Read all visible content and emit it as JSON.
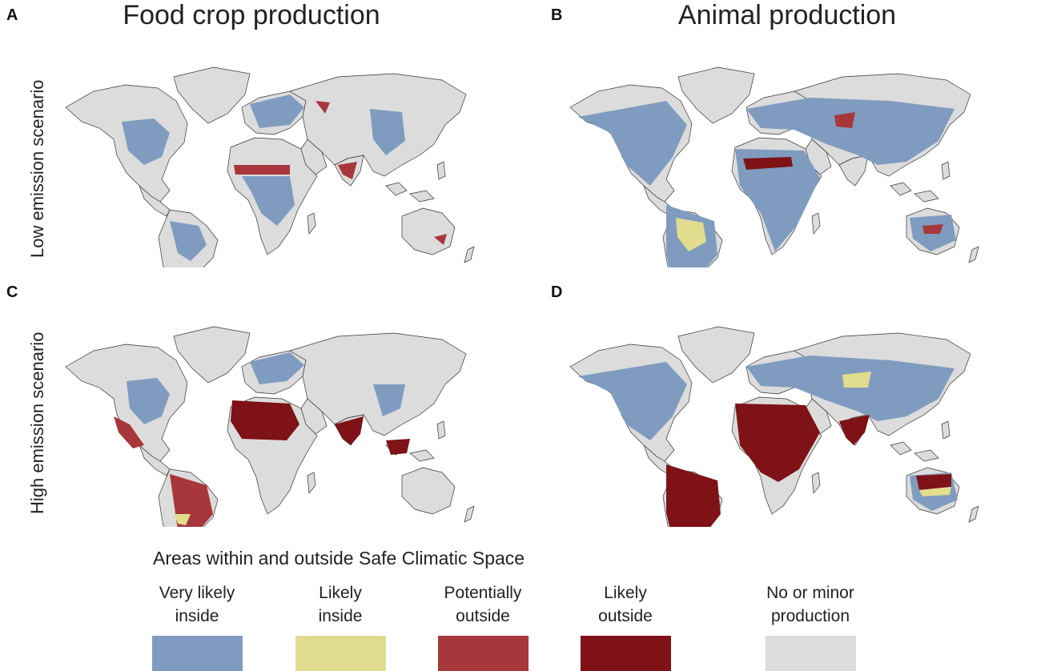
{
  "panels": {
    "a": {
      "letter": "A"
    },
    "b": {
      "letter": "B"
    },
    "c": {
      "letter": "C"
    },
    "d": {
      "letter": "D"
    }
  },
  "columns": {
    "left": "Food crop production",
    "right": "Animal production"
  },
  "rows": {
    "top": "Low emission scenario",
    "bottom": "High emission scenario"
  },
  "legend": {
    "title": "Areas within and outside Safe Climatic Space",
    "items": [
      {
        "line1": "Very likely",
        "line2": "inside",
        "color": "#7f9cc0"
      },
      {
        "line1": "Likely",
        "line2": "inside",
        "color": "#e2dc8e"
      },
      {
        "line1": "Potentially",
        "line2": "outside",
        "color": "#a8373b"
      },
      {
        "line1": "Likely",
        "line2": "outside",
        "color": "#7e1216"
      },
      {
        "line1": "No or minor",
        "line2": "production",
        "color": "#dcdcdc"
      }
    ]
  }
}
